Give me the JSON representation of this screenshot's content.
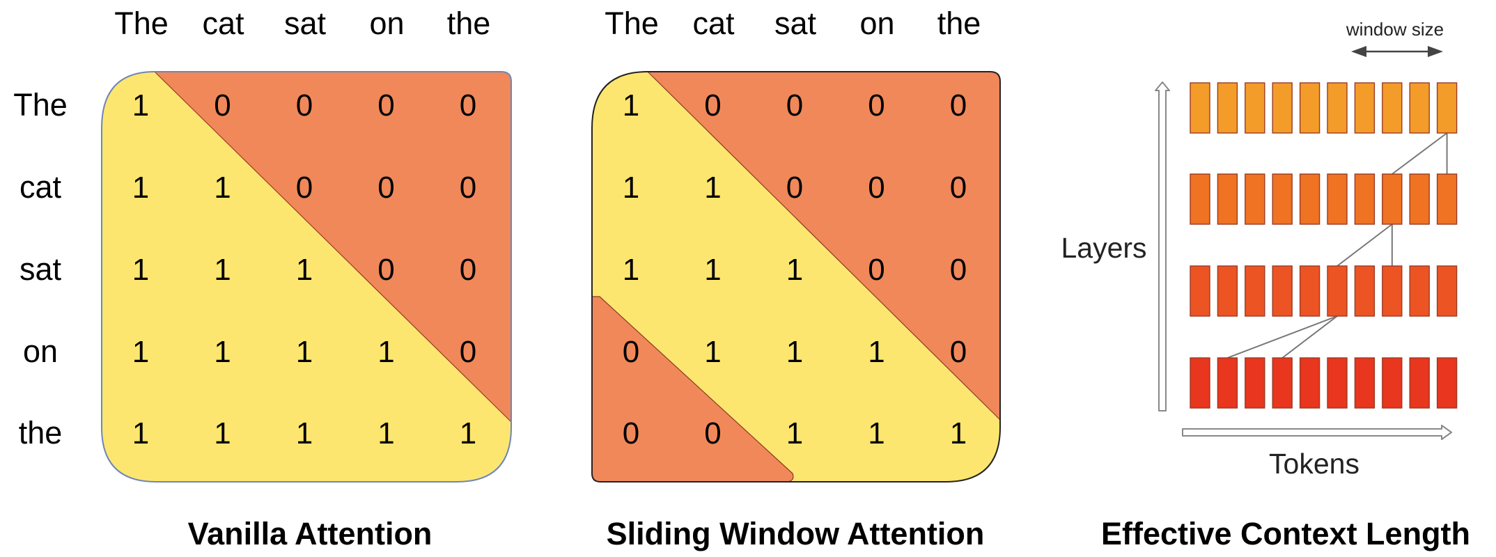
{
  "tokens": [
    "The",
    "cat",
    "sat",
    "on",
    "the"
  ],
  "panels": {
    "vanilla": {
      "caption": "Vanilla Attention",
      "matrix": [
        [
          1,
          0,
          0,
          0,
          0
        ],
        [
          1,
          1,
          0,
          0,
          0
        ],
        [
          1,
          1,
          1,
          0,
          0
        ],
        [
          1,
          1,
          1,
          1,
          0
        ],
        [
          1,
          1,
          1,
          1,
          1
        ]
      ]
    },
    "sliding": {
      "caption": "Sliding Window Attention",
      "matrix": [
        [
          1,
          0,
          0,
          0,
          0
        ],
        [
          1,
          1,
          0,
          0,
          0
        ],
        [
          1,
          1,
          1,
          0,
          0
        ],
        [
          0,
          1,
          1,
          1,
          0
        ],
        [
          0,
          0,
          1,
          1,
          1
        ]
      ]
    },
    "context": {
      "caption": "Effective Context Length",
      "y_label": "Layers",
      "x_label": "Tokens",
      "window_label": "window size",
      "layers": 4,
      "tokens_per_layer": 10,
      "layer_colors": [
        "#F39C2A",
        "#EF7323",
        "#EC5424",
        "#E8361F"
      ]
    }
  },
  "colors": {
    "attend": "#FDE670",
    "masked": "#F0885A",
    "vanilla_border": "#6E86B7",
    "sliding_border": "#222222",
    "box_outline": "#9B3A22",
    "connector": "#777777"
  }
}
